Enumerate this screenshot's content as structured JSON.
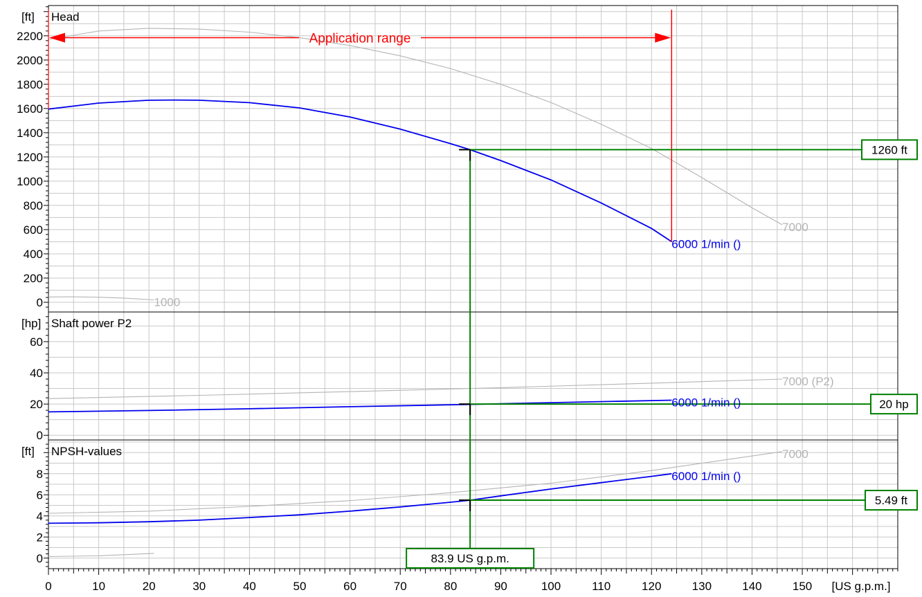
{
  "chart_data": {
    "type": "line",
    "x": {
      "unit": "[US g.p.m.]",
      "range": [
        0,
        169
      ],
      "ticks": [
        0,
        10,
        20,
        30,
        40,
        50,
        60,
        70,
        80,
        90,
        100,
        110,
        120,
        130,
        140,
        150
      ],
      "tick_labels": [
        "0",
        "10",
        "20",
        "30",
        "40",
        "50",
        "60",
        "70",
        "80",
        "90",
        "100",
        "110",
        "120",
        "130",
        "140",
        "150"
      ]
    },
    "panels": [
      {
        "title": "Head",
        "unit": "[ft]",
        "range": [
          -80,
          2450
        ],
        "ticks": [
          0,
          200,
          400,
          600,
          800,
          1000,
          1200,
          1400,
          1600,
          1800,
          2000,
          2200
        ],
        "tick_labels": [
          "0",
          "200",
          "400",
          "600",
          "800",
          "1000",
          "1200",
          "1400",
          "1600",
          "1800",
          "2000",
          "2200"
        ],
        "series": [
          {
            "name": "6000 1/min ()",
            "color": "#0000ee",
            "x": [
              0,
              10,
              20,
              25,
              30,
              40,
              50,
              60,
              70,
              80,
              83.9,
              90,
              100,
              110,
              120,
              124
            ],
            "y": [
              1595,
              1645,
              1668,
              1670,
              1668,
              1648,
              1605,
              1530,
              1430,
              1310,
              1260,
              1170,
              1010,
              820,
              610,
              500
            ]
          },
          {
            "name": "7000",
            "color": "#b4b4b4",
            "x": [
              0,
              10,
              20,
              30,
              40,
              50,
              60,
              70,
              80,
              90,
              100,
              110,
              120,
              130,
              140,
              146
            ],
            "y": [
              2170,
              2240,
              2262,
              2255,
              2230,
              2185,
              2120,
              2035,
              1930,
              1800,
              1650,
              1470,
              1270,
              1030,
              780,
              640
            ]
          },
          {
            "name": "1000",
            "color": "#b4b4b4",
            "x": [
              0,
              5,
              10,
              15,
              21
            ],
            "y": [
              44,
              45,
              42,
              35,
              20
            ]
          }
        ]
      },
      {
        "title": "Shaft power P2",
        "unit": "[hp]",
        "range": [
          -3,
          79
        ],
        "ticks": [
          0,
          20,
          40,
          60
        ],
        "tick_labels": [
          "0",
          "20",
          "40",
          "60"
        ],
        "series": [
          {
            "name": "6000 1/min ()",
            "color": "#0000ee",
            "x": [
              0,
              20,
              40,
              60,
              83.9,
              100,
              124
            ],
            "y": [
              15,
              15.9,
              17,
              18.3,
              19.8,
              20.9,
              22.5
            ]
          },
          {
            "name": "7000 (P2)",
            "color": "#b4b4b4",
            "x": [
              0,
              30,
              60,
              90,
              120,
              146
            ],
            "y": [
              23.5,
              25.6,
              28,
              30.5,
              33.4,
              36
            ]
          }
        ]
      },
      {
        "title": "NPSH-values",
        "unit": "[ft]",
        "range": [
          -1,
          11.2
        ],
        "ticks": [
          0,
          2,
          4,
          6,
          8
        ],
        "tick_labels": [
          "0",
          "2",
          "4",
          "6",
          "8"
        ],
        "series": [
          {
            "name": "6000 1/min ()",
            "color": "#0000ee",
            "x": [
              0,
              10,
              20,
              30,
              40,
              50,
              60,
              70,
              80,
              83.9,
              90,
              100,
              110,
              120,
              124
            ],
            "y": [
              3.3,
              3.35,
              3.45,
              3.6,
              3.85,
              4.1,
              4.45,
              4.85,
              5.3,
              5.49,
              5.9,
              6.55,
              7.15,
              7.75,
              8.0
            ]
          },
          {
            "name": "7000",
            "color": "#b4b4b4",
            "x": [
              0,
              20,
              40,
              60,
              80,
              100,
              120,
              146
            ],
            "y": [
              4.25,
              4.45,
              4.9,
              5.45,
              6.2,
              7.1,
              8.3,
              10.1
            ]
          },
          {
            "name": "",
            "color": "#b4b4b4",
            "x": [
              0,
              10,
              21
            ],
            "y": [
              0.15,
              0.22,
              0.45
            ]
          }
        ]
      }
    ],
    "operating_point": {
      "flow": 83.9,
      "flow_label": "83.9 US g.p.m.",
      "head": 1260,
      "head_label": "1260 ft",
      "power": 20,
      "power_label": "20 hp",
      "npsh": 5.49,
      "npsh_label": "5.49 ft",
      "color": "#008000"
    },
    "application_range": {
      "label": "Application range",
      "x_start": 0,
      "x_end": 124,
      "head_marker": 2270,
      "color": "#ff0000"
    },
    "grid": true
  }
}
